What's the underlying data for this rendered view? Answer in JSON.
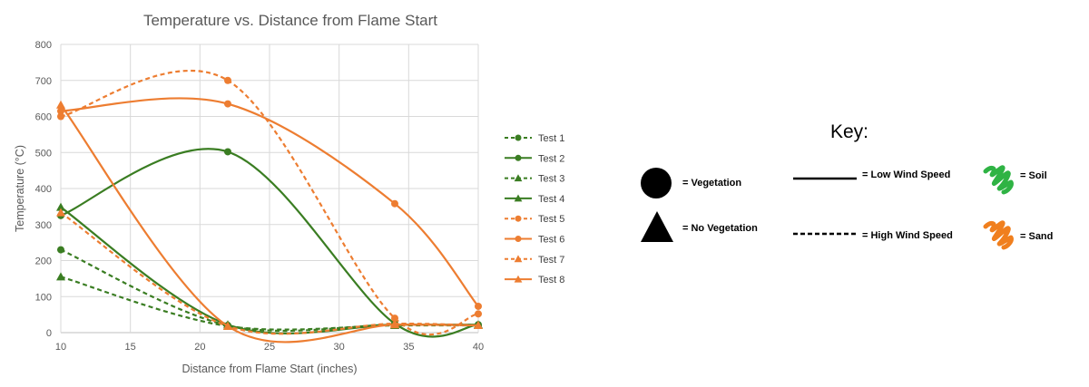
{
  "chart_data": {
    "type": "line",
    "title": "Temperature vs. Distance from Flame Start",
    "xlabel": "Distance from Flame Start (inches)",
    "ylabel": "Temperature (°C)",
    "xlim": [
      10,
      40
    ],
    "ylim": [
      0,
      800
    ],
    "xticks": [
      "10",
      "15",
      "20",
      "25",
      "30",
      "35",
      "40"
    ],
    "yticks": [
      "0",
      "100",
      "200",
      "300",
      "400",
      "500",
      "600",
      "700",
      "800"
    ],
    "grid": true,
    "smooth": true,
    "legend_position": "right",
    "x": [
      10,
      22,
      34,
      40
    ],
    "series": [
      {
        "name": "Test 1",
        "values": [
          230,
          20,
          22,
          20
        ],
        "color": "#3a7d22",
        "dash": true,
        "marker": "circle"
      },
      {
        "name": "Test 2",
        "values": [
          325,
          502,
          25,
          22
        ],
        "color": "#3a7d22",
        "dash": false,
        "marker": "circle"
      },
      {
        "name": "Test 3",
        "values": [
          155,
          18,
          20,
          20
        ],
        "color": "#3a7d22",
        "dash": true,
        "marker": "triangle"
      },
      {
        "name": "Test 4",
        "values": [
          348,
          22,
          22,
          22
        ],
        "color": "#3a7d22",
        "dash": false,
        "marker": "triangle"
      },
      {
        "name": "Test 5",
        "values": [
          600,
          700,
          40,
          52
        ],
        "color": "#ed7d31",
        "dash": true,
        "marker": "circle"
      },
      {
        "name": "Test 6",
        "values": [
          615,
          635,
          358,
          73
        ],
        "color": "#ed7d31",
        "dash": false,
        "marker": "circle"
      },
      {
        "name": "Test 7",
        "values": [
          333,
          18,
          25,
          20
        ],
        "color": "#ed7d31",
        "dash": true,
        "marker": "triangle"
      },
      {
        "name": "Test 8",
        "values": [
          632,
          18,
          22,
          20
        ],
        "color": "#ed7d31",
        "dash": false,
        "marker": "triangle"
      }
    ]
  },
  "key": {
    "title": "Key:",
    "vegetation": "= Vegetation",
    "no_vegetation": "= No Vegetation",
    "low_wind": "= Low Wind Speed",
    "high_wind": "= High Wind Speed",
    "soil": "= Soil",
    "sand": "= Sand",
    "soil_color": "#2fb344",
    "sand_color": "#f07f1e"
  }
}
